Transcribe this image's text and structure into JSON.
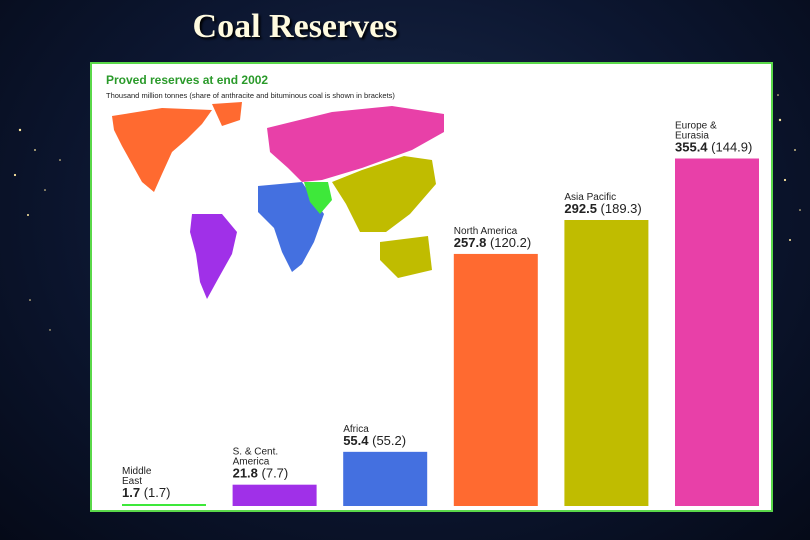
{
  "slide": {
    "title": "Coal Reserves"
  },
  "card": {
    "title": "Proved reserves at end 2002",
    "subtitle": "Thousand million tonnes (share of anthracite and bituminous coal is shown in brackets)"
  },
  "colors": {
    "middle_east": "#3ee83a",
    "s_cent_america": "#a030e8",
    "africa": "#4470e0",
    "north_america": "#ff6a30",
    "asia_pacific": "#c0bc00",
    "europe_eurasia": "#e840a8",
    "frame": "#5ad84a"
  },
  "chart_data": {
    "type": "bar",
    "title": "Proved reserves at end 2002",
    "categories": [
      {
        "lines": [
          "Middle",
          "East"
        ],
        "value": 1.7,
        "share": 1.7,
        "value_label": "1.7",
        "share_label": "(1.7)",
        "color": "#3ee83a"
      },
      {
        "lines": [
          "S. & Cent.",
          "America"
        ],
        "value": 21.8,
        "share": 7.7,
        "value_label": "21.8",
        "share_label": "(7.7)",
        "color": "#a030e8"
      },
      {
        "lines": [
          "Africa"
        ],
        "value": 55.4,
        "share": 55.2,
        "value_label": "55.4",
        "share_label": "(55.2)",
        "color": "#4470e0"
      },
      {
        "lines": [
          "North America"
        ],
        "value": 257.8,
        "share": 120.2,
        "value_label": "257.8",
        "share_label": "(120.2)",
        "color": "#ff6a30"
      },
      {
        "lines": [
          "Asia Pacific"
        ],
        "value": 292.5,
        "share": 189.3,
        "value_label": "292.5",
        "share_label": "(189.3)",
        "color": "#c0bc00"
      },
      {
        "lines": [
          "Europe &",
          "Eurasia"
        ],
        "value": 355.4,
        "share": 144.9,
        "value_label": "355.4",
        "share_label": "(144.9)",
        "color": "#e840a8"
      }
    ],
    "ylim": [
      0,
      360
    ]
  },
  "map": {
    "regions": [
      {
        "name": "north-america",
        "color": "#ff6a30"
      },
      {
        "name": "s-cent-america",
        "color": "#a030e8"
      },
      {
        "name": "europe-eurasia",
        "color": "#e840a8"
      },
      {
        "name": "africa",
        "color": "#4470e0"
      },
      {
        "name": "middle-east",
        "color": "#3ee83a"
      },
      {
        "name": "asia-pacific",
        "color": "#c0bc00"
      }
    ]
  }
}
